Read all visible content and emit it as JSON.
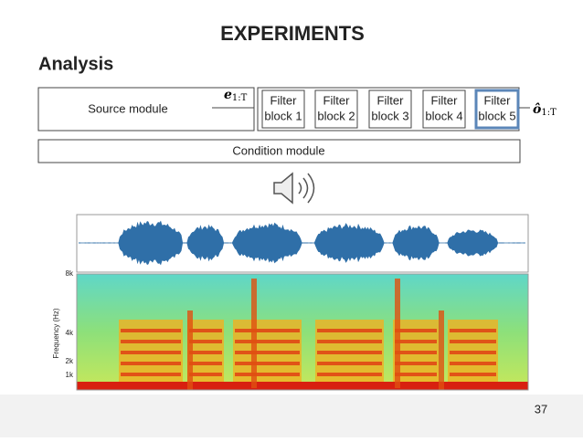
{
  "header": {
    "title": "EXPERIMENTS",
    "subtitle": "Analysis"
  },
  "diagram": {
    "source": "Source module",
    "encoder_output": {
      "symbol": "e",
      "subscript": "1:T"
    },
    "filters": [
      [
        "Filter",
        "block 1"
      ],
      [
        "Filter",
        "block 2"
      ],
      [
        "Filter",
        "block 3"
      ],
      [
        "Filter",
        "block 4"
      ],
      [
        "Filter",
        "block 5"
      ]
    ],
    "output": {
      "symbol": "ô",
      "subscript": "1:T"
    },
    "condition": "Condition module"
  },
  "spectrogram": {
    "y_label": "Frequency (Hz)",
    "ticks": [
      "8k",
      "4k",
      "2k",
      "1k"
    ]
  },
  "footer": {
    "page": "37"
  }
}
